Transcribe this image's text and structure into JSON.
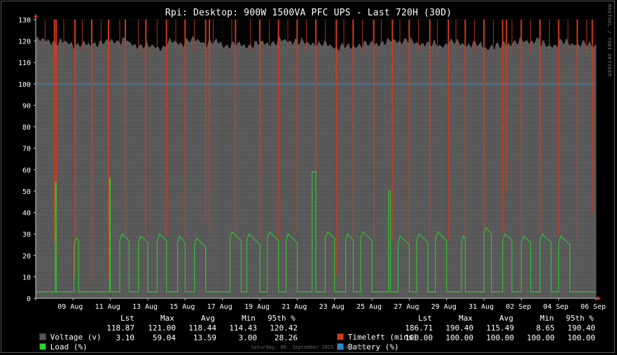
{
  "timestamp": "Saturday, 06. September 2025 07:43:04PM",
  "legend": {
    "headers": [
      "Lst",
      "Max",
      "Avg",
      "Min",
      "95th %"
    ],
    "left": [
      {
        "name": "Voltage (v)",
        "lst": "118.87",
        "max": "121.00",
        "avg": "118.44",
        "min": "114.43",
        "p95": "120.42"
      },
      {
        "name": "Load (%)",
        "lst": "3.10",
        "max": "59.04",
        "avg": "13.59",
        "min": "3.00",
        "p95": "28.26"
      }
    ],
    "right": [
      {
        "name": "Timeleft (mins)",
        "lst": "186.71",
        "max": "190.40",
        "avg": "115.49",
        "min": "8.65",
        "p95": "190.40"
      },
      {
        "name": "Battery (%)",
        "lst": "100.00",
        "max": "100.00",
        "avg": "100.00",
        "min": "100.00",
        "p95": "100.00"
      }
    ]
  },
  "chart_data": {
    "type": "area",
    "title": "Rpi: Desktop: 900W 1500VA PFC UPS - Last 720H (30D)",
    "watermark": "RRDTOOL / TOBI OETIKER",
    "ylim": [
      0,
      130
    ],
    "y_ticks": [
      0,
      10,
      20,
      30,
      40,
      50,
      60,
      70,
      80,
      90,
      100,
      110,
      120,
      130
    ],
    "x_range_days": [
      0,
      30
    ],
    "x_ticks": [
      {
        "label": "09 Aug",
        "day": 2
      },
      {
        "label": "11 Aug",
        "day": 4
      },
      {
        "label": "13 Aug",
        "day": 6
      },
      {
        "label": "15 Aug",
        "day": 8
      },
      {
        "label": "17 Aug",
        "day": 10
      },
      {
        "label": "19 Aug",
        "day": 12
      },
      {
        "label": "21 Aug",
        "day": 14
      },
      {
        "label": "23 Aug",
        "day": 16
      },
      {
        "label": "25 Aug",
        "day": 18
      },
      {
        "label": "27 Aug",
        "day": 20
      },
      {
        "label": "29 Aug",
        "day": 22
      },
      {
        "label": "31 Aug",
        "day": 24
      },
      {
        "label": "02 Sep",
        "day": 26
      },
      {
        "label": "04 Sep",
        "day": 28
      },
      {
        "label": "06 Sep",
        "day": 30
      }
    ],
    "grid": true,
    "series": [
      {
        "name": "Voltage (v)",
        "color": "#5a5a5a",
        "style": "area",
        "values": [
          120,
          119,
          118,
          119,
          120,
          118,
          117,
          119,
          120,
          119,
          118,
          118,
          119,
          120,
          119,
          118,
          117,
          118,
          119,
          120,
          119,
          118,
          119,
          118,
          117,
          119,
          120,
          118,
          119,
          118,
          119
        ]
      },
      {
        "name": "Timeleft (mins)",
        "color": "#d23a1e",
        "style": "line",
        "baseline": 190,
        "dips": [
          {
            "day": 1.0,
            "value": 26
          },
          {
            "day": 1.1,
            "value": 11
          },
          {
            "day": 2.1,
            "value": 10
          },
          {
            "day": 3.0,
            "value": 9
          },
          {
            "day": 3.9,
            "value": 8.65
          },
          {
            "day": 4.8,
            "value": 30
          },
          {
            "day": 5.9,
            "value": 28
          },
          {
            "day": 7.0,
            "value": 29
          },
          {
            "day": 8.0,
            "value": 28
          },
          {
            "day": 9.1,
            "value": 35
          },
          {
            "day": 9.3,
            "value": 30
          },
          {
            "day": 10.7,
            "value": 28
          },
          {
            "day": 12.0,
            "value": 27
          },
          {
            "day": 13.0,
            "value": 26
          },
          {
            "day": 14.0,
            "value": 30
          },
          {
            "day": 15.0,
            "value": 27
          },
          {
            "day": 16.1,
            "value": 11
          },
          {
            "day": 17.0,
            "value": 26
          },
          {
            "day": 18.1,
            "value": 28
          },
          {
            "day": 19.1,
            "value": 27
          },
          {
            "day": 20.0,
            "value": 12
          },
          {
            "day": 21.1,
            "value": 28
          },
          {
            "day": 22.1,
            "value": 27
          },
          {
            "day": 23.0,
            "value": 26
          },
          {
            "day": 24.0,
            "value": 29
          },
          {
            "day": 25.0,
            "value": 30
          },
          {
            "day": 25.2,
            "value": 50
          },
          {
            "day": 26.0,
            "value": 28
          },
          {
            "day": 27.0,
            "value": 30
          },
          {
            "day": 28.0,
            "value": 29
          },
          {
            "day": 29.0,
            "value": 27
          },
          {
            "day": 29.8,
            "value": 40
          }
        ]
      },
      {
        "name": "Load (%)",
        "color": "#2ad42a",
        "style": "line",
        "baseline": 3,
        "events": [
          {
            "start": 1.05,
            "end": 1.1,
            "level": 54
          },
          {
            "start": 2.05,
            "end": 2.3,
            "level": 25
          },
          {
            "start": 3.95,
            "end": 4.0,
            "level": 56
          },
          {
            "start": 4.5,
            "end": 5.0,
            "level": 27
          },
          {
            "start": 5.5,
            "end": 6.0,
            "level": 26
          },
          {
            "start": 6.5,
            "end": 7.0,
            "level": 27
          },
          {
            "start": 7.6,
            "end": 8.0,
            "level": 26
          },
          {
            "start": 8.5,
            "end": 9.1,
            "level": 25
          },
          {
            "start": 10.4,
            "end": 11.0,
            "level": 28
          },
          {
            "start": 11.3,
            "end": 12.0,
            "level": 27
          },
          {
            "start": 12.4,
            "end": 13.0,
            "level": 28
          },
          {
            "start": 13.4,
            "end": 14.0,
            "level": 27
          },
          {
            "start": 14.8,
            "end": 15.0,
            "level": 59
          },
          {
            "start": 15.5,
            "end": 16.0,
            "level": 28
          },
          {
            "start": 16.6,
            "end": 17.0,
            "level": 27
          },
          {
            "start": 17.4,
            "end": 18.0,
            "level": 28
          },
          {
            "start": 18.9,
            "end": 19.0,
            "level": 50
          },
          {
            "start": 19.4,
            "end": 20.0,
            "level": 26
          },
          {
            "start": 20.4,
            "end": 21.0,
            "level": 27
          },
          {
            "start": 21.4,
            "end": 22.0,
            "level": 28
          },
          {
            "start": 22.8,
            "end": 23.0,
            "level": 26
          },
          {
            "start": 24.0,
            "end": 24.4,
            "level": 30
          },
          {
            "start": 25.0,
            "end": 25.5,
            "level": 27
          },
          {
            "start": 26.0,
            "end": 26.5,
            "level": 26
          },
          {
            "start": 27.0,
            "end": 27.6,
            "level": 27
          },
          {
            "start": 28.0,
            "end": 28.6,
            "level": 26
          }
        ]
      },
      {
        "name": "Battery (%)",
        "color": "#2a8ad0",
        "style": "line",
        "values": [
          100,
          100
        ]
      }
    ]
  }
}
